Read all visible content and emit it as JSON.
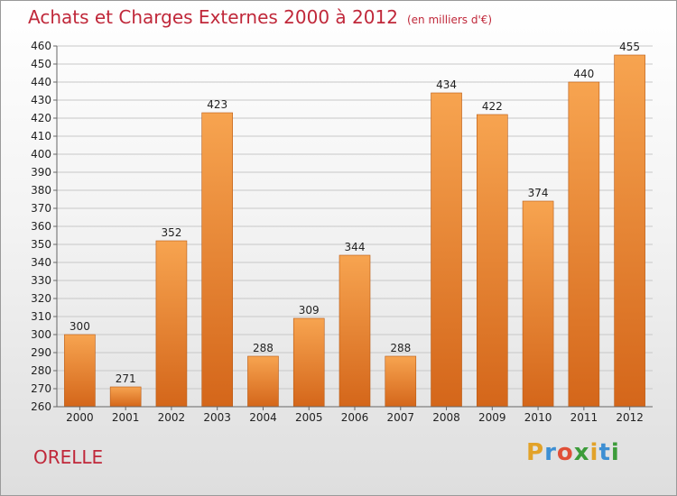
{
  "header": {
    "title": "Achats et Charges Externes 2000 à 2012",
    "subtitle": "(en milliers d'€)"
  },
  "commune": "ORELLE",
  "brand": {
    "letters": [
      "P",
      "r",
      "o",
      "x",
      "i",
      "t",
      "i"
    ],
    "colors": [
      "#e2a229",
      "#3d8fd3",
      "#e04f37",
      "#3c9c3a",
      "#e2a229",
      "#3d8fd3",
      "#3c9c3a"
    ]
  },
  "chart_data": {
    "type": "bar",
    "title": "Achats et Charges Externes 2000 à 2012",
    "subtitle": "(en milliers d'€)",
    "categories": [
      "2000",
      "2001",
      "2002",
      "2003",
      "2004",
      "2005",
      "2006",
      "2007",
      "2008",
      "2009",
      "2010",
      "2011",
      "2012"
    ],
    "values": [
      300,
      271,
      352,
      423,
      288,
      309,
      344,
      288,
      434,
      422,
      374,
      440,
      455
    ],
    "ylim": [
      260,
      460
    ],
    "yticks": [
      260,
      270,
      280,
      290,
      300,
      310,
      320,
      330,
      340,
      350,
      360,
      370,
      380,
      390,
      400,
      410,
      420,
      430,
      440,
      450,
      460
    ],
    "grid": true,
    "bar_color_top": "#f7a450",
    "bar_color_bottom": "#d4661a"
  }
}
